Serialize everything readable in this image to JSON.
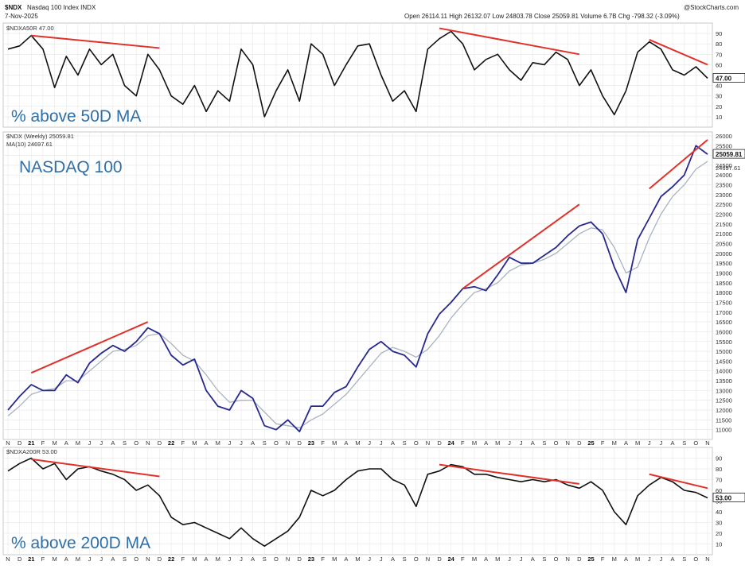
{
  "header": {
    "symbol": "$NDX",
    "name": "Nasdaq 100 Index INDX",
    "date": "7-Nov-2025",
    "ohlc": "Open 26114.11  High 26132.07  Low 24803.78  Close 25059.81  Volume 6.7B  Chg -798.32 (-3.09%)",
    "watermark": "@StockCharts.com"
  },
  "overlays": {
    "top": "% above 50D MA",
    "mid": "NASDAQ 100",
    "bot": "% above 200D MA"
  },
  "legends": {
    "top": "$NDXA50R 47.00",
    "mid1": "$NDX (Weekly) 25059.81",
    "mid2": "MA(10) 24697.61",
    "bot": "$NDXA200R 53.00"
  },
  "last_values": {
    "top": "47.00",
    "mid": "25059.81",
    "mid_ma": "24697.61",
    "bot": "53.00"
  },
  "colors": {
    "price": "#27288f",
    "ma": "#a8b4c0",
    "breadth": "#111111",
    "trendline": "#e0322b",
    "overlay_text": "#2f6fa7",
    "grid": "#e4e4e4"
  },
  "x_axis": {
    "months": [
      "N",
      "D",
      "21",
      "F",
      "M",
      "A",
      "M",
      "J",
      "J",
      "A",
      "S",
      "O",
      "N",
      "D",
      "22",
      "F",
      "M",
      "A",
      "M",
      "J",
      "J",
      "A",
      "S",
      "O",
      "N",
      "D",
      "23",
      "F",
      "M",
      "A",
      "M",
      "J",
      "J",
      "A",
      "S",
      "O",
      "N",
      "D",
      "24",
      "F",
      "M",
      "A",
      "M",
      "J",
      "J",
      "A",
      "S",
      "O",
      "N",
      "D",
      "25",
      "F",
      "M",
      "A",
      "M",
      "J",
      "J",
      "A",
      "S",
      "O",
      "N"
    ],
    "years": [
      "21",
      "22",
      "23",
      "24",
      "25"
    ]
  },
  "chart_data": [
    {
      "type": "line",
      "title": "% above 50D MA",
      "series_name": "$NDXA50R",
      "ylim": [
        0,
        100
      ],
      "yticks": [
        10,
        20,
        30,
        40,
        50,
        60,
        70,
        80,
        90
      ],
      "last": 47.0,
      "x": [
        "2020-11",
        "2020-12",
        "2021-01",
        "2021-02",
        "2021-03",
        "2021-04",
        "2021-05",
        "2021-06",
        "2021-07",
        "2021-08",
        "2021-09",
        "2021-10",
        "2021-11",
        "2021-12",
        "2022-01",
        "2022-02",
        "2022-03",
        "2022-04",
        "2022-05",
        "2022-06",
        "2022-07",
        "2022-08",
        "2022-09",
        "2022-10",
        "2022-11",
        "2022-12",
        "2023-01",
        "2023-02",
        "2023-03",
        "2023-04",
        "2023-05",
        "2023-06",
        "2023-07",
        "2023-08",
        "2023-09",
        "2023-10",
        "2023-11",
        "2023-12",
        "2024-01",
        "2024-02",
        "2024-03",
        "2024-04",
        "2024-05",
        "2024-06",
        "2024-07",
        "2024-08",
        "2024-09",
        "2024-10",
        "2024-11",
        "2024-12",
        "2025-01",
        "2025-02",
        "2025-03",
        "2025-04",
        "2025-05",
        "2025-06",
        "2025-07",
        "2025-08",
        "2025-09",
        "2025-10",
        "2025-11"
      ],
      "values": [
        75,
        78,
        88,
        75,
        38,
        68,
        50,
        75,
        60,
        70,
        40,
        30,
        70,
        55,
        30,
        22,
        40,
        15,
        35,
        25,
        75,
        60,
        10,
        35,
        55,
        25,
        80,
        70,
        40,
        60,
        78,
        80,
        50,
        25,
        35,
        15,
        75,
        85,
        92,
        80,
        55,
        65,
        70,
        55,
        45,
        62,
        60,
        72,
        65,
        40,
        55,
        30,
        12,
        35,
        72,
        82,
        75,
        55,
        50,
        58,
        47
      ],
      "trendlines": [
        {
          "from": [
            "2021-01",
            88
          ],
          "to": [
            "2021-12",
            76
          ]
        },
        {
          "from": [
            "2023-12",
            95
          ],
          "to": [
            "2024-12",
            70
          ]
        },
        {
          "from": [
            "2025-06",
            84
          ],
          "to": [
            "2025-11",
            60
          ]
        }
      ]
    },
    {
      "type": "line",
      "title": "NASDAQ 100",
      "series": [
        {
          "name": "$NDX (Weekly)",
          "values": [
            12000,
            12700,
            13300,
            13000,
            13000,
            13800,
            13400,
            14400,
            14900,
            15300,
            15000,
            15500,
            16200,
            15900,
            14800,
            14300,
            14600,
            13000,
            12200,
            12000,
            13000,
            12600,
            11200,
            11000,
            11500,
            10900,
            12200,
            12200,
            12900,
            13200,
            14200,
            15100,
            15500,
            15000,
            14800,
            14200,
            15900,
            16900,
            17500,
            18200,
            18300,
            18100,
            18900,
            19800,
            19500,
            19500,
            19900,
            20300,
            20900,
            21400,
            21600,
            21000,
            19300,
            18000,
            20700,
            21800,
            22900,
            23400,
            24000,
            25500,
            25060
          ]
        },
        {
          "name": "MA(10)",
          "values": [
            11700,
            12200,
            12800,
            13000,
            13100,
            13500,
            13500,
            14000,
            14500,
            15000,
            15100,
            15300,
            15800,
            15900,
            15400,
            14800,
            14500,
            13800,
            13000,
            12400,
            12500,
            12500,
            11900,
            11300,
            11200,
            11100,
            11500,
            11800,
            12300,
            12800,
            13500,
            14200,
            14900,
            15200,
            15000,
            14700,
            15100,
            15800,
            16700,
            17400,
            18000,
            18200,
            18500,
            19100,
            19400,
            19500,
            19700,
            20000,
            20500,
            21000,
            21300,
            21200,
            20300,
            19000,
            19300,
            20800,
            22000,
            22900,
            23500,
            24300,
            24700
          ]
        }
      ],
      "ylim": [
        10500,
        26200
      ],
      "yticks": [
        11000,
        11500,
        12000,
        12500,
        13000,
        13500,
        14000,
        14500,
        15000,
        15500,
        16000,
        16500,
        17000,
        17500,
        18000,
        18500,
        19000,
        19500,
        20000,
        20500,
        21000,
        21500,
        22000,
        22500,
        23000,
        23500,
        24000,
        24500,
        25000,
        25500,
        26000
      ],
      "last": 25059.81,
      "trendlines": [
        {
          "from": [
            "2021-01",
            13900
          ],
          "to": [
            "2021-11",
            16500
          ]
        },
        {
          "from": [
            "2024-02",
            18200
          ],
          "to": [
            "2024-12",
            22500
          ]
        },
        {
          "from": [
            "2025-06",
            23300
          ],
          "to": [
            "2025-11",
            25800
          ]
        }
      ]
    },
    {
      "type": "line",
      "title": "% above 200D MA",
      "series_name": "$NDXA200R",
      "ylim": [
        0,
        100
      ],
      "yticks": [
        10,
        20,
        30,
        40,
        50,
        60,
        70,
        80,
        90
      ],
      "last": 53.0,
      "values": [
        78,
        85,
        90,
        80,
        85,
        70,
        80,
        82,
        78,
        75,
        70,
        60,
        65,
        55,
        35,
        28,
        30,
        25,
        20,
        15,
        25,
        15,
        8,
        15,
        22,
        35,
        60,
        55,
        60,
        70,
        78,
        80,
        80,
        70,
        65,
        45,
        75,
        78,
        84,
        82,
        75,
        75,
        72,
        70,
        68,
        70,
        68,
        70,
        65,
        62,
        68,
        60,
        40,
        28,
        55,
        65,
        72,
        68,
        60,
        58,
        53
      ],
      "trendlines": [
        {
          "from": [
            "2021-01",
            89
          ],
          "to": [
            "2021-12",
            73
          ]
        },
        {
          "from": [
            "2023-12",
            84
          ],
          "to": [
            "2024-12",
            66
          ]
        },
        {
          "from": [
            "2025-06",
            75
          ],
          "to": [
            "2025-11",
            62
          ]
        }
      ]
    }
  ]
}
